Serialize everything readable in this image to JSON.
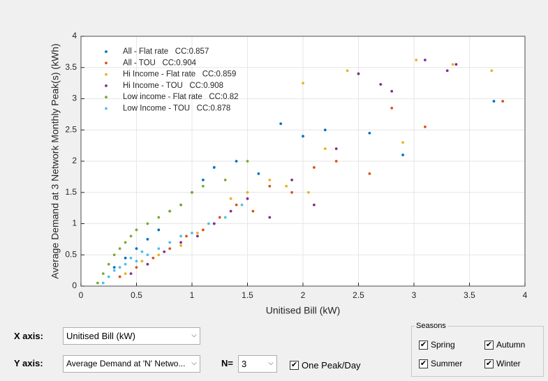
{
  "chart_data": {
    "type": "scatter",
    "x_label": "Unitised Bill (kW)",
    "y_label": "Average Demand at 3 Network Monthly Peak(s) (kWh)",
    "xlim": [
      0,
      4
    ],
    "xticks": [
      0,
      0.5,
      1,
      1.5,
      2,
      2.5,
      3,
      3.5,
      4
    ],
    "ylim": [
      0,
      4
    ],
    "yticks": [
      0,
      0.5,
      1,
      1.5,
      2,
      2.5,
      3,
      3.5,
      4
    ],
    "grid": true,
    "legend": "top-left",
    "series": [
      {
        "name": "All - Flat rate   CC:0.857",
        "color": "#0072BD",
        "x": [
          0.3,
          0.4,
          0.5,
          0.6,
          0.7,
          0.8,
          0.9,
          1.0,
          1.1,
          1.2,
          1.4,
          1.6,
          1.8,
          2.0,
          2.2,
          2.6,
          2.9,
          3.72
        ],
        "values": [
          0.3,
          0.45,
          0.6,
          0.75,
          0.9,
          1.2,
          1.3,
          1.5,
          1.7,
          1.9,
          2.0,
          1.8,
          2.6,
          2.4,
          2.5,
          2.45,
          2.1,
          2.96
        ]
      },
      {
        "name": "All - TOU   CC:0.904",
        "color": "#D95319",
        "x": [
          0.35,
          0.5,
          0.65,
          0.8,
          0.95,
          1.1,
          1.25,
          1.4,
          1.55,
          1.7,
          1.9,
          2.1,
          2.3,
          2.6,
          2.8,
          3.1,
          3.8
        ],
        "values": [
          0.15,
          0.3,
          0.45,
          0.6,
          0.8,
          0.9,
          1.1,
          1.3,
          1.2,
          1.6,
          1.5,
          1.9,
          2.0,
          1.8,
          2.85,
          2.55,
          2.96
        ]
      },
      {
        "name": "Hi Income - Flat rate   CC:0.859",
        "color": "#EDB120",
        "x": [
          0.4,
          0.55,
          0.7,
          0.9,
          1.05,
          1.2,
          1.35,
          1.5,
          1.7,
          1.85,
          2.0,
          2.05,
          2.2,
          2.4,
          2.9,
          3.02,
          3.35,
          3.7
        ],
        "values": [
          0.2,
          0.4,
          0.5,
          0.65,
          0.85,
          1.0,
          1.4,
          1.5,
          1.7,
          1.6,
          3.25,
          1.5,
          2.2,
          3.45,
          2.3,
          3.62,
          3.55,
          3.45
        ]
      },
      {
        "name": "Hi Income - TOU   CC:0.908",
        "color": "#7E2F8E",
        "x": [
          0.45,
          0.6,
          0.75,
          0.9,
          1.05,
          1.2,
          1.35,
          1.5,
          1.7,
          1.9,
          2.1,
          2.3,
          2.5,
          2.7,
          2.8,
          3.1,
          3.3,
          3.38
        ],
        "values": [
          0.2,
          0.35,
          0.55,
          0.7,
          0.8,
          1.0,
          1.2,
          1.4,
          1.1,
          1.7,
          1.3,
          2.2,
          3.4,
          3.23,
          3.12,
          3.62,
          3.45,
          3.55
        ]
      },
      {
        "name": "Low income - Flat rate   CC:0.82",
        "color": "#77AC30",
        "x": [
          0.15,
          0.2,
          0.25,
          0.3,
          0.35,
          0.4,
          0.45,
          0.5,
          0.6,
          0.7,
          0.8,
          0.9,
          1.0,
          1.1,
          1.3,
          1.5
        ],
        "values": [
          0.05,
          0.2,
          0.35,
          0.5,
          0.6,
          0.7,
          0.8,
          0.9,
          1.0,
          1.1,
          1.2,
          1.3,
          1.5,
          1.6,
          1.7,
          2.0
        ]
      },
      {
        "name": "Low Income - TOU   CC:0.878",
        "color": "#4DBEEE",
        "x": [
          0.2,
          0.25,
          0.3,
          0.35,
          0.4,
          0.45,
          0.5,
          0.55,
          0.6,
          0.7,
          0.8,
          0.9,
          1.0,
          1.15,
          1.3,
          1.45
        ],
        "values": [
          0.05,
          0.15,
          0.25,
          0.3,
          0.35,
          0.45,
          0.4,
          0.55,
          0.5,
          0.6,
          0.7,
          0.8,
          0.85,
          1.0,
          1.1,
          1.3
        ]
      }
    ]
  },
  "controls": {
    "x_axis": {
      "label": "X axis:",
      "selected": "Unitised Bill (kW)"
    },
    "y_axis": {
      "label": "Y axis:",
      "selected": "Average Demand at 'N' Netwo..."
    },
    "n": {
      "label": "N=",
      "selected": "3"
    },
    "one_peak": {
      "label": "One Peak/Day",
      "checked": true
    },
    "seasons": {
      "title": "Seasons",
      "options": [
        {
          "label": "Spring",
          "checked": true
        },
        {
          "label": "Autumn",
          "checked": true
        },
        {
          "label": "Summer",
          "checked": true
        },
        {
          "label": "Winter",
          "checked": true
        }
      ]
    }
  }
}
